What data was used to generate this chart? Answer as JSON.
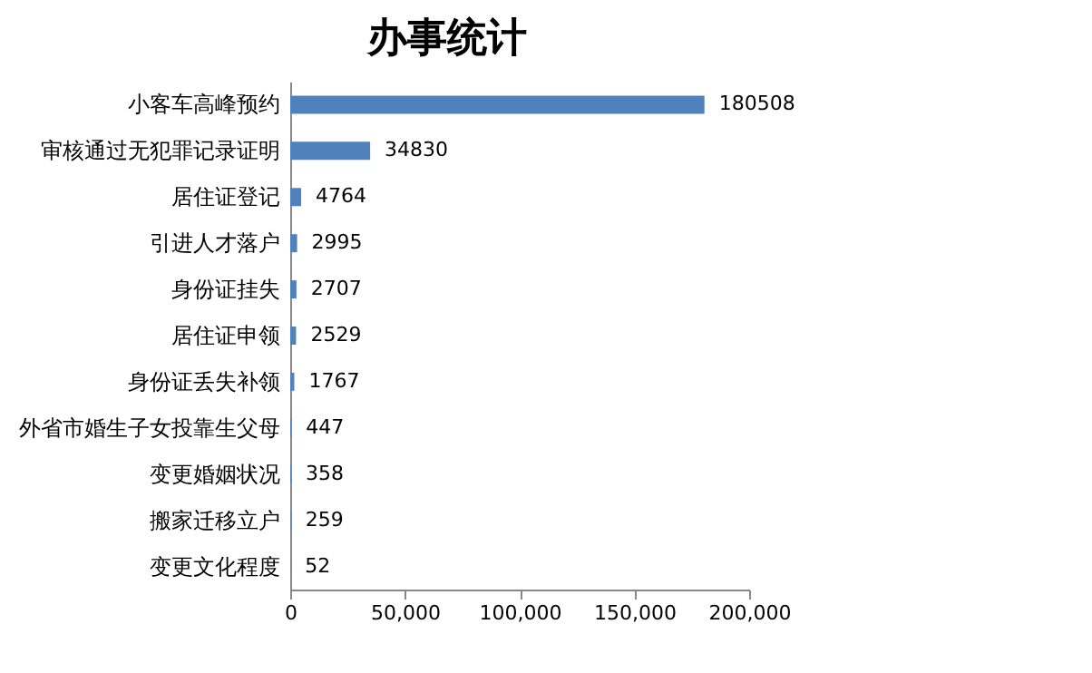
{
  "chart_data": {
    "type": "bar",
    "orientation": "horizontal",
    "title": "办事统计",
    "categories": [
      "小客车高峰预约",
      "审核通过无犯罪记录证明",
      "居住证登记",
      "引进人才落户",
      "身份证挂失",
      "居住证申领",
      "身份证丢失补领",
      "外省市婚生子女投靠生父母",
      "变更婚姻状况",
      "搬家迁移立户",
      "变更文化程度"
    ],
    "values": [
      180508,
      34830,
      4764,
      2995,
      2707,
      2529,
      1767,
      447,
      358,
      259,
      52
    ],
    "color": "#4f81bd",
    "data_labels": true,
    "grid": false,
    "xlim": [
      0,
      200000
    ],
    "xticks": [
      0,
      {
        "value": 50000,
        "label": "50,000"
      },
      {
        "value": 100000,
        "label": "100,000"
      },
      {
        "value": 150000,
        "label": "150,000"
      },
      {
        "value": 200000,
        "label": "200,000"
      }
    ]
  }
}
